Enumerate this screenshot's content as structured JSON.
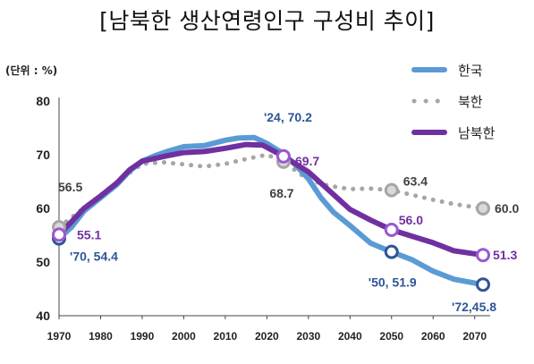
{
  "chart_data": {
    "type": "line",
    "title": "[남북한 생산연령인구 구성비 추이]",
    "unit_label": "(단위 : %)",
    "x_ticks": [
      "1970",
      "1980",
      "1990",
      "2000",
      "2010",
      "2020",
      "2030",
      "2040",
      "2050",
      "2060",
      "2070"
    ],
    "y_ticks": [
      "40",
      "50",
      "60",
      "70",
      "80"
    ],
    "xlim": [
      1970,
      2072
    ],
    "ylim": [
      40,
      80
    ],
    "legend_position": "top-right",
    "grid": false,
    "series": [
      {
        "name": "한국",
        "color": "#5b9bd5",
        "style": "solid",
        "points": [
          [
            1970,
            54.4
          ],
          [
            1973,
            56.5
          ],
          [
            1976,
            59.5
          ],
          [
            1980,
            62.0
          ],
          [
            1984,
            64.5
          ],
          [
            1987,
            67.0
          ],
          [
            1990,
            68.8
          ],
          [
            1993,
            69.8
          ],
          [
            1996,
            70.6
          ],
          [
            2000,
            71.5
          ],
          [
            2005,
            71.7
          ],
          [
            2010,
            72.7
          ],
          [
            2013,
            73.1
          ],
          [
            2017,
            73.2
          ],
          [
            2020,
            72.1
          ],
          [
            2024,
            70.2
          ],
          [
            2027,
            68.0
          ],
          [
            2030,
            65.5
          ],
          [
            2033,
            62.0
          ],
          [
            2036,
            59.3
          ],
          [
            2040,
            56.8
          ],
          [
            2045,
            53.5
          ],
          [
            2050,
            51.9
          ],
          [
            2055,
            50.4
          ],
          [
            2060,
            48.3
          ],
          [
            2065,
            46.8
          ],
          [
            2072,
            45.8
          ]
        ]
      },
      {
        "name": "북한",
        "color": "#a6a6a6",
        "style": "dotted",
        "points": [
          [
            1970,
            56.5
          ],
          [
            1975,
            59.5
          ],
          [
            1980,
            62.5
          ],
          [
            1985,
            65.5
          ],
          [
            1990,
            68.3
          ],
          [
            1995,
            68.6
          ],
          [
            2000,
            68.2
          ],
          [
            2005,
            67.8
          ],
          [
            2010,
            68.3
          ],
          [
            2015,
            69.2
          ],
          [
            2020,
            70.0
          ],
          [
            2024,
            68.7
          ],
          [
            2030,
            65.3
          ],
          [
            2035,
            64.2
          ],
          [
            2040,
            63.6
          ],
          [
            2045,
            63.7
          ],
          [
            2050,
            63.4
          ],
          [
            2055,
            62.5
          ],
          [
            2060,
            61.6
          ],
          [
            2065,
            60.8
          ],
          [
            2072,
            60.0
          ]
        ]
      },
      {
        "name": "남북한",
        "color": "#7030a0",
        "style": "solid",
        "points": [
          [
            1970,
            55.1
          ],
          [
            1973,
            57.5
          ],
          [
            1976,
            60.0
          ],
          [
            1980,
            62.3
          ],
          [
            1984,
            64.8
          ],
          [
            1987,
            67.2
          ],
          [
            1990,
            68.8
          ],
          [
            1993,
            69.3
          ],
          [
            1996,
            69.8
          ],
          [
            2000,
            70.4
          ],
          [
            2005,
            70.6
          ],
          [
            2010,
            71.2
          ],
          [
            2015,
            71.9
          ],
          [
            2019,
            71.8
          ],
          [
            2024,
            69.7
          ],
          [
            2030,
            66.8
          ],
          [
            2035,
            63.3
          ],
          [
            2040,
            59.8
          ],
          [
            2045,
            57.8
          ],
          [
            2050,
            56.0
          ],
          [
            2055,
            54.8
          ],
          [
            2060,
            53.6
          ],
          [
            2065,
            52.1
          ],
          [
            2072,
            51.3
          ]
        ]
      }
    ],
    "annotations": [
      {
        "text": "56.5",
        "x": 1970,
        "y": 56.5,
        "color": "#404040"
      },
      {
        "text": "55.1",
        "x": 1970,
        "y": 55.1,
        "color": "#7030a0"
      },
      {
        "text": "'70, 54.4",
        "x": 1970,
        "y": 54.4,
        "color": "#2f5597"
      },
      {
        "text": "'24, 70.2",
        "x": 2024,
        "y": 70.2,
        "color": "#2f5597"
      },
      {
        "text": "69.7",
        "x": 2024,
        "y": 69.7,
        "color": "#7030a0"
      },
      {
        "text": "68.7",
        "x": 2024,
        "y": 68.7,
        "color": "#404040"
      },
      {
        "text": "63.4",
        "x": 2050,
        "y": 63.4,
        "color": "#404040"
      },
      {
        "text": "56.0",
        "x": 2050,
        "y": 56.0,
        "color": "#7030a0"
      },
      {
        "text": "'50, 51.9",
        "x": 2050,
        "y": 51.9,
        "color": "#2f5597"
      },
      {
        "text": "60.0",
        "x": 2072,
        "y": 60.0,
        "color": "#404040"
      },
      {
        "text": "51.3",
        "x": 2072,
        "y": 51.3,
        "color": "#7030a0"
      },
      {
        "text": "'72,45.8",
        "x": 2072,
        "y": 45.8,
        "color": "#2f5597"
      }
    ]
  }
}
